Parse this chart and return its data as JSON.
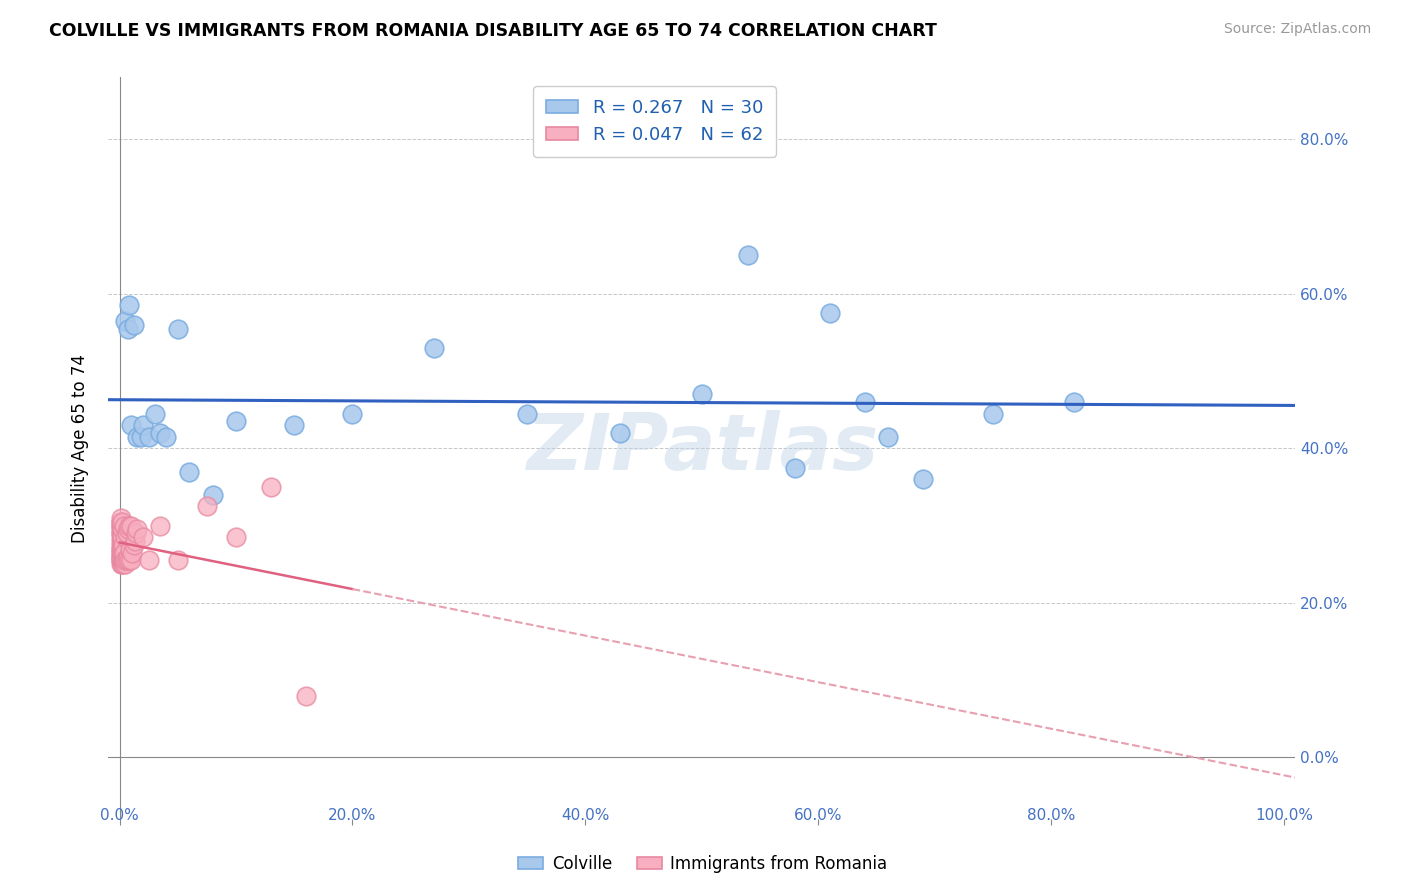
{
  "title": "COLVILLE VS IMMIGRANTS FROM ROMANIA DISABILITY AGE 65 TO 74 CORRELATION CHART",
  "source": "Source: ZipAtlas.com",
  "ylabel": "Disability Age 65 to 74",
  "R_blue": 0.267,
  "N_blue": 30,
  "R_pink": 0.047,
  "N_pink": 62,
  "blue_scatter_x": [
    0.005,
    0.007,
    0.008,
    0.01,
    0.012,
    0.015,
    0.018,
    0.02,
    0.025,
    0.03,
    0.035,
    0.04,
    0.05,
    0.06,
    0.08,
    0.1,
    0.15,
    0.2,
    0.27,
    0.35,
    0.43,
    0.5,
    0.54,
    0.58,
    0.61,
    0.64,
    0.66,
    0.69,
    0.75,
    0.82
  ],
  "blue_scatter_y": [
    0.565,
    0.555,
    0.585,
    0.43,
    0.56,
    0.415,
    0.415,
    0.43,
    0.415,
    0.445,
    0.42,
    0.415,
    0.555,
    0.37,
    0.34,
    0.435,
    0.43,
    0.445,
    0.53,
    0.445,
    0.42,
    0.47,
    0.65,
    0.375,
    0.575,
    0.46,
    0.415,
    0.36,
    0.445,
    0.46
  ],
  "pink_scatter_x": [
    0.001,
    0.001,
    0.001,
    0.001,
    0.001,
    0.001,
    0.001,
    0.001,
    0.001,
    0.001,
    0.001,
    0.001,
    0.001,
    0.001,
    0.001,
    0.001,
    0.001,
    0.001,
    0.001,
    0.001,
    0.002,
    0.002,
    0.002,
    0.002,
    0.002,
    0.002,
    0.002,
    0.002,
    0.002,
    0.002,
    0.003,
    0.003,
    0.003,
    0.003,
    0.004,
    0.004,
    0.004,
    0.005,
    0.005,
    0.005,
    0.006,
    0.006,
    0.007,
    0.007,
    0.008,
    0.008,
    0.009,
    0.01,
    0.01,
    0.011,
    0.012,
    0.013,
    0.014,
    0.015,
    0.02,
    0.025,
    0.035,
    0.05,
    0.075,
    0.1,
    0.13,
    0.16
  ],
  "pink_scatter_y": [
    0.255,
    0.26,
    0.265,
    0.27,
    0.275,
    0.28,
    0.285,
    0.29,
    0.29,
    0.295,
    0.3,
    0.3,
    0.305,
    0.305,
    0.31,
    0.25,
    0.255,
    0.26,
    0.265,
    0.27,
    0.25,
    0.255,
    0.26,
    0.265,
    0.27,
    0.275,
    0.28,
    0.285,
    0.295,
    0.305,
    0.25,
    0.255,
    0.265,
    0.275,
    0.255,
    0.265,
    0.3,
    0.25,
    0.255,
    0.285,
    0.255,
    0.29,
    0.26,
    0.295,
    0.255,
    0.3,
    0.27,
    0.255,
    0.3,
    0.265,
    0.275,
    0.28,
    0.29,
    0.295,
    0.285,
    0.255,
    0.3,
    0.255,
    0.325,
    0.285,
    0.35,
    0.08
  ],
  "blue_line_color": "#3060c0",
  "pink_solid_color": "#e06080",
  "pink_dash_color": "#e8a0b0",
  "xlim": [
    -0.01,
    1.01
  ],
  "ylim": [
    -0.08,
    0.88
  ],
  "xticks": [
    0.0,
    0.2,
    0.4,
    0.6,
    0.8,
    1.0
  ],
  "xticklabels_inner": [
    "",
    "20.0%",
    "40.0%",
    "60.0%",
    "80.0%",
    ""
  ],
  "xticklabels_edge_left": "0.0%",
  "xticklabels_edge_right": "100.0%",
  "yticks": [
    0.0,
    0.2,
    0.4,
    0.6,
    0.8
  ],
  "yticklabels_right": [
    "0.0%",
    "20.0%",
    "40.0%",
    "60.0%",
    "80.0%"
  ],
  "watermark": "ZIPatlas",
  "legend_label_blue": "R = 0.267   N = 30",
  "legend_label_pink": "R = 0.047   N = 62"
}
